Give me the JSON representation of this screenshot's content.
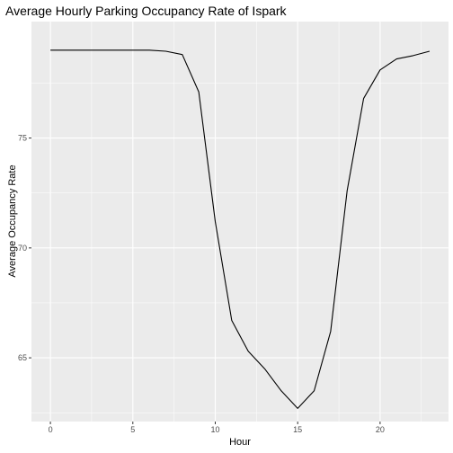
{
  "chart_data": {
    "type": "line",
    "title": "Average Hourly Parking Occupancy Rate of Ispark",
    "xlabel": "Hour",
    "ylabel": "Average Occupancy Rate",
    "xlim": [
      -1.15,
      24.15
    ],
    "ylim": [
      62.1,
      80.3
    ],
    "x_ticks": [
      0,
      5,
      10,
      15,
      20
    ],
    "y_ticks": [
      65,
      70,
      75
    ],
    "grid": true,
    "legend": "none",
    "series": [
      {
        "x": [
          0,
          1,
          2,
          3,
          4,
          5,
          6,
          7,
          8,
          9,
          10,
          11,
          12,
          13,
          14,
          15,
          16,
          17,
          18,
          19,
          20,
          21,
          22,
          23
        ],
        "values": [
          79.0,
          79.0,
          79.0,
          79.0,
          79.0,
          79.0,
          79.0,
          78.95,
          78.8,
          77.1,
          71.2,
          66.7,
          65.3,
          64.5,
          63.5,
          62.7,
          63.5,
          66.2,
          72.6,
          76.8,
          78.1,
          78.6,
          78.75,
          78.95
        ]
      }
    ]
  },
  "colors": {
    "panel_bg": "#ebebeb",
    "grid_major": "#ffffff",
    "line": "#000000"
  }
}
